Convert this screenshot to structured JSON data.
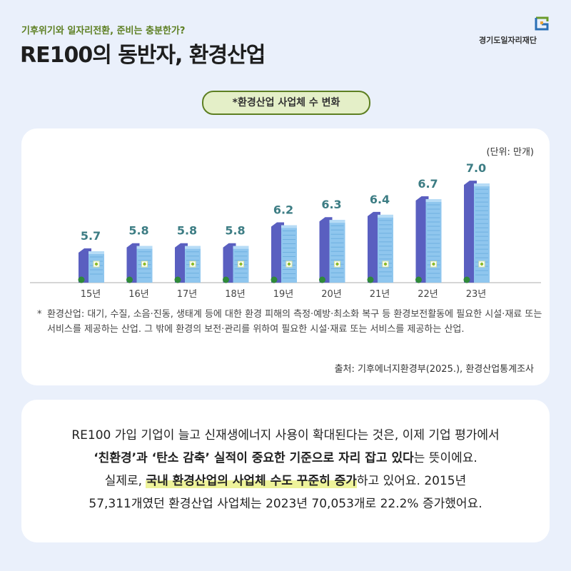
{
  "header": {
    "subtitle": "기후위기와 일자리전환, 준비는 충분한가?",
    "title": "RE100의 동반자, 환경산업",
    "logo_text": "경기도일자리재단"
  },
  "section_label": "*환경산업 사업체 수 변화",
  "unit_label": "(단위: 만개)",
  "chart_data": {
    "type": "bar",
    "categories": [
      "15년",
      "16년",
      "17년",
      "18년",
      "19년",
      "20년",
      "21년",
      "22년",
      "23년"
    ],
    "values": [
      5.7,
      5.8,
      5.8,
      5.8,
      6.2,
      6.3,
      6.4,
      6.7,
      7.0
    ],
    "title": "*환경산업 사업체 수 변화",
    "xlabel": "",
    "ylabel": "",
    "unit": "(단위: 만개)",
    "grid": false
  },
  "colors": {
    "accent_green": "#5d7f22",
    "pill_bg": "#e4efc8",
    "building_dark": "#5a5fc0",
    "building_light": "#8fc6ee",
    "value_label": "#3d7d84",
    "highlight": "#eef39a"
  },
  "footnote": {
    "star": "*",
    "text": "환경산업: 대기, 수질, 소음·진동, 생태계 등에 대한 환경 피해의 측정·예방·최소화 복구 등 환경보전활동에 필요한 시설·재료 또는 서비스를 제공하는 산업. 그 밖에 환경의 보전·관리를 위하여 필요한 시설·재료 또는 서비스를 제공하는 산업."
  },
  "source": "출처: 기후에너지환경부(2025.), 환경산업통계조사",
  "body": {
    "line1": "RE100 가입 기업이 늘고 신재생에너지 사용이 확대된다는 것은, 이제 기업 평가에서",
    "line2_bold": "‘친환경’과 ‘탄소 감축’ 실적이 중요한 기준으로 자리 잡고 있다",
    "line2_rest": "는 뜻이에요.",
    "line3_pre": "실제로, ",
    "line3_highlight": "국내 환경산업의 사업체 수도 꾸준히 증가",
    "line3_rest": "하고 있어요. 2015년",
    "line4": "57,311개였던 환경산업 사업체는 2023년 70,053개로 22.2% 증가했어요."
  }
}
